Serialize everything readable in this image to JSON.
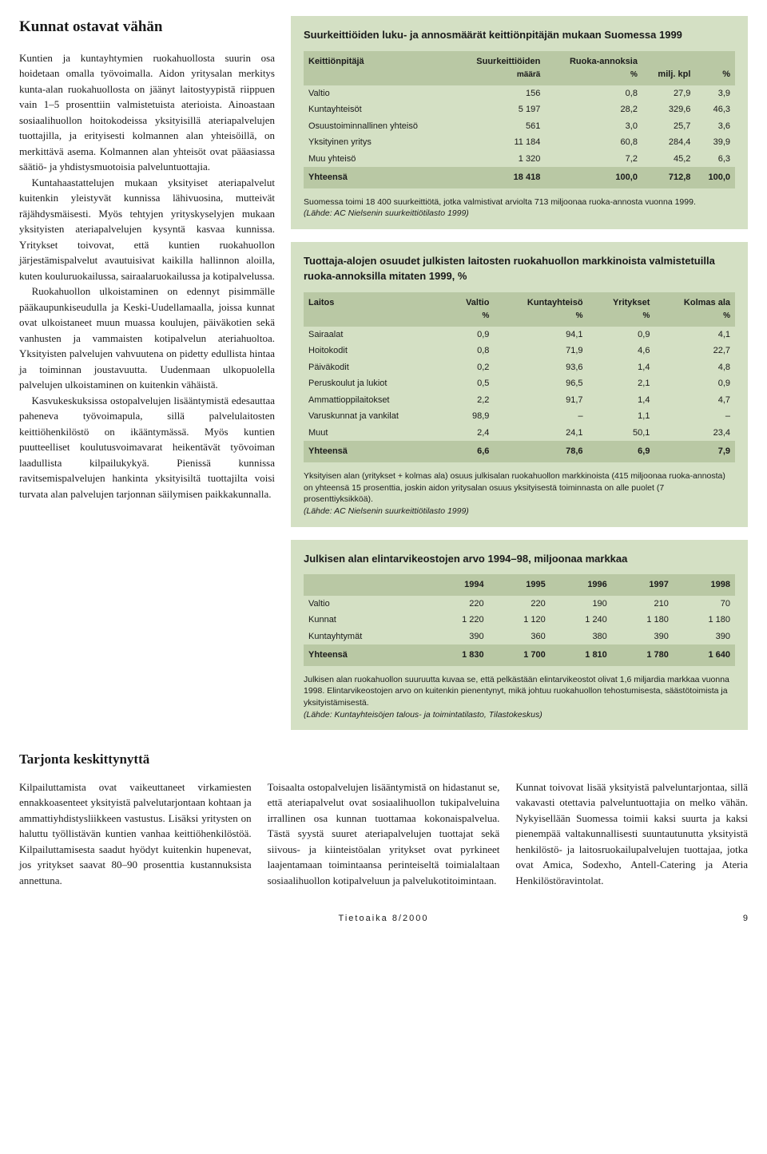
{
  "colors": {
    "table_bg": "#d4e0c4",
    "header_row_bg": "#b9c8a4",
    "text": "#1a1a1a",
    "page_bg": "#ffffff"
  },
  "typography": {
    "body_font": "Georgia, serif",
    "table_font": "Arial, sans-serif",
    "body_size_pt": 10,
    "table_size_pt": 8
  },
  "article": {
    "title": "Kunnat ostavat vähän",
    "p1": "Kuntien ja kuntayhtymien ruokahuollosta suurin osa hoidetaan omalla työvoimalla. Aidon yritysalan merkitys kunta-alan ruokahuollosta on jäänyt laitostyypistä riippuen vain 1–5 prosenttiin valmistetuista aterioista. Ainoastaan sosiaalihuollon hoitokodeissa yksityisillä ateriapalvelujen tuottajilla, ja erityisesti kolmannen alan yhteisöillä, on merkittävä asema. Kolmannen alan yhteisöt ovat pääasiassa säätiö- ja yhdistysmuotoisia palveluntuottajia.",
    "p2": "Kuntahaastattelujen mukaan yksityiset ateriapalvelut kuitenkin yleistyvät kunnissa lähivuosina, mutteivät räjähdysmäisesti. Myös tehtyjen yrityskyselyjen mukaan yksityisten ateriapalvelujen kysyntä kasvaa kunnissa. Yritykset toivovat, että kuntien ruokahuollon järjestämispalvelut avautuisivat kaikilla hallinnon aloilla, kuten kouluruokailussa, sairaalaruokailussa ja kotipalvelussa.",
    "p3": "Ruokahuollon ulkoistaminen on edennyt pisimmälle pääkaupunkiseudulla ja Keski-Uudellamaalla, joissa kunnat ovat ulkoistaneet muun muassa koulujen, päiväkotien sekä vanhusten ja vammaisten kotipalvelun ateriahuoltoa. Yksityisten palvelujen vahvuutena on pidetty edullista hintaa ja toiminnan joustavuutta. Uudenmaan ulkopuolella palvelujen ulkoistaminen on kuitenkin vähäistä.",
    "p4": "Kasvukeskuksissa ostopalvelujen lisääntymistä edesauttaa paheneva työvoimapula, sillä palvelulaitosten keittiöhenkilöstö on ikääntymässä. Myös kuntien puutteelliset koulutusvoimavarat heikentävät työvoiman laadullista kilpailukykyä. Pienissä kunnissa ravitsemispalvelujen hankinta yksityisiltä tuottajilta voisi turvata alan palvelujen tarjonnan säilymisen paikkakunnalla.",
    "subtitle": "Tarjonta keskittynyttä",
    "c1": "Kilpailuttamista ovat vaikeuttaneet virkamiesten ennakkoasenteet yksityistä palvelutarjontaan kohtaan ja ammattiyhdistysliikkeen vastustus. Lisäksi yritysten on haluttu työllistävän kuntien vanhaa keittiöhenkilöstöä. Kilpailuttamisesta saadut hyödyt kuitenkin hupenevat, jos yritykset saavat 80–90 prosenttia kustannuksista annettuna.",
    "c2": "Toisaalta ostopalvelujen lisääntymistä on hidastanut se, että ateriapalvelut ovat sosiaalihuollon tukipalveluina irrallinen osa kunnan tuottamaa kokonaispalvelua. Tästä syystä suuret ateriapalvelujen tuottajat sekä siivous- ja kiinteistöalan yritykset ovat pyrkineet laajentamaan toimintaansa perinteiseltä toimialaltaan sosiaalihuollon kotipalveluun ja palvelukotitoimintaan.",
    "c3": "Kunnat toivovat lisää yksityistä palveluntarjontaa, sillä vakavasti otettavia palveluntuottajia on melko vähän. Nykyisellään Suomessa toimii kaksi suurta ja kaksi pienempää valtakunnallisesti suuntautunutta yksityistä henkilöstö- ja laitosruokailupalvelujen tuottajaa, jotka ovat Amica, Sodexho, Antell-Catering ja Ateria Henkilöstöravintolat."
  },
  "table1": {
    "title": "Suurkeittiöiden luku- ja annosmäärät keittiönpitäjän mukaan Suomessa 1999",
    "headers": {
      "c1": "Keittiönpitäjä",
      "c2a": "Suurkeittiöiden",
      "c2b": "määrä",
      "c3": "Ruoka-annoksia",
      "c3pct": "%",
      "c4": "milj. kpl",
      "c5": "%"
    },
    "rows": [
      {
        "label": "Valtio",
        "v1": "156",
        "v2": "0,8",
        "v3": "27,9",
        "v4": "3,9"
      },
      {
        "label": "Kuntayhteisöt",
        "v1": "5 197",
        "v2": "28,2",
        "v3": "329,6",
        "v4": "46,3"
      },
      {
        "label": "Osuustoiminnallinen yhteisö",
        "v1": "561",
        "v2": "3,0",
        "v3": "25,7",
        "v4": "3,6"
      },
      {
        "label": "Yksityinen yritys",
        "v1": "11 184",
        "v2": "60,8",
        "v3": "284,4",
        "v4": "39,9"
      },
      {
        "label": "Muu yhteisö",
        "v1": "1 320",
        "v2": "7,2",
        "v3": "45,2",
        "v4": "6,3"
      }
    ],
    "total": {
      "label": "Yhteensä",
      "v1": "18 418",
      "v2": "100,0",
      "v3": "712,8",
      "v4": "100,0"
    },
    "footnote": "Suomessa toimi 18 400 suurkeittiötä, jotka valmistivat arviolta 713 miljoonaa ruoka-annosta vuonna 1999.",
    "source": "(Lähde: AC Nielsenin suurkeittiötilasto 1999)"
  },
  "table2": {
    "title": "Tuottaja-alojen osuudet julkisten laitosten ruokahuollon markkinoista valmistetuilla ruoka-annoksilla mitaten 1999, %",
    "headers": {
      "c1": "Laitos",
      "c2": "Valtio",
      "c3": "Kuntayhteisö",
      "c4": "Yritykset",
      "c5": "Kolmas ala",
      "pct": "%"
    },
    "rows": [
      {
        "label": "Sairaalat",
        "v1": "0,9",
        "v2": "94,1",
        "v3": "0,9",
        "v4": "4,1"
      },
      {
        "label": "Hoitokodit",
        "v1": "0,8",
        "v2": "71,9",
        "v3": "4,6",
        "v4": "22,7"
      },
      {
        "label": "Päiväkodit",
        "v1": "0,2",
        "v2": "93,6",
        "v3": "1,4",
        "v4": "4,8"
      },
      {
        "label": "Peruskoulut ja lukiot",
        "v1": "0,5",
        "v2": "96,5",
        "v3": "2,1",
        "v4": "0,9"
      },
      {
        "label": "Ammattioppilaitokset",
        "v1": "2,2",
        "v2": "91,7",
        "v3": "1,4",
        "v4": "4,7"
      },
      {
        "label": "Varuskunnat ja vankilat",
        "v1": "98,9",
        "v2": "–",
        "v3": "1,1",
        "v4": "–"
      },
      {
        "label": "Muut",
        "v1": "2,4",
        "v2": "24,1",
        "v3": "50,1",
        "v4": "23,4"
      }
    ],
    "total": {
      "label": "Yhteensä",
      "v1": "6,6",
      "v2": "78,6",
      "v3": "6,9",
      "v4": "7,9"
    },
    "footnote": "Yksityisen alan (yritykset + kolmas ala) osuus julkisalan ruokahuollon markkinoista (415 miljoonaa ruoka-annosta) on yhteensä 15 prosenttia, joskin aidon yritysalan osuus yksityisestä toiminnasta on alle puolet (7 prosenttiyksikköä).",
    "source": "(Lähde: AC Nielsenin suurkeittiötilasto 1999)"
  },
  "table3": {
    "title": "Julkisen alan elintarvikeostojen arvo 1994–98, miljoonaa markkaa",
    "years": [
      "1994",
      "1995",
      "1996",
      "1997",
      "1998"
    ],
    "rows": [
      {
        "label": "Valtio",
        "v": [
          "220",
          "220",
          "190",
          "210",
          "70"
        ]
      },
      {
        "label": "Kunnat",
        "v": [
          "1 220",
          "1 120",
          "1 240",
          "1 180",
          "1 180"
        ]
      },
      {
        "label": "Kuntayhtymät",
        "v": [
          "390",
          "360",
          "380",
          "390",
          "390"
        ]
      }
    ],
    "total": {
      "label": "Yhteensä",
      "v": [
        "1 830",
        "1 700",
        "1 810",
        "1 780",
        "1 640"
      ]
    },
    "footnote": "Julkisen alan ruokahuollon suuruutta kuvaa se, että pelkästään elintarvikeostot olivat 1,6 miljardia markkaa vuonna 1998. Elintarvikeostojen arvo on kuitenkin pienentynyt, mikä johtuu ruokahuollon tehostumisesta, säästötoimista ja yksityistämisestä.",
    "source": "(Lähde: Kuntayhteisöjen talous- ja toimintatilasto, Tilastokeskus)"
  },
  "footer": {
    "journal": "Tietoaika 8/2000",
    "page": "9"
  }
}
